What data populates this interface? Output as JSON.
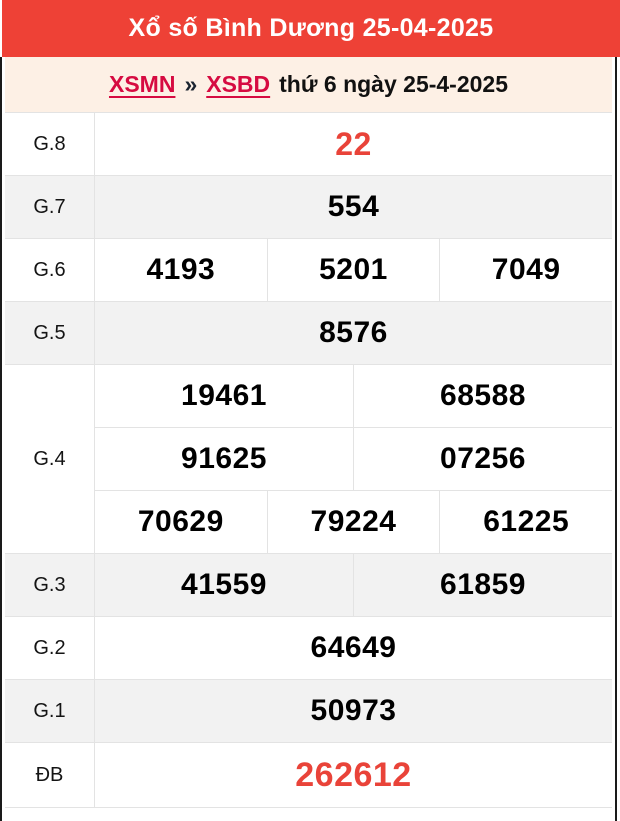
{
  "header": {
    "title": "Xổ số Bình Dương 25-04-2025",
    "bg_color": "#ee4136",
    "text_color": "#ffffff"
  },
  "breadcrumb": {
    "region_link": "XSMN",
    "separator": "»",
    "province_link": "XSBD",
    "date_text": "thứ 6 ngày 25-4-2025",
    "bg_color": "#fdf0e5",
    "link_color": "#d60b41"
  },
  "table": {
    "rows": [
      {
        "label": "G.8",
        "cells": [
          "22"
        ]
      },
      {
        "label": "G.7",
        "cells": [
          "554"
        ]
      },
      {
        "label": "G.6",
        "cells": [
          "4193",
          "5201",
          "7049"
        ]
      },
      {
        "label": "G.5",
        "cells": [
          "8576"
        ]
      },
      {
        "label": "G.4",
        "lines": [
          [
            "19461",
            "68588"
          ],
          [
            "91625",
            "07256"
          ],
          [
            "70629",
            "79224",
            "61225"
          ]
        ]
      },
      {
        "label": "G.3",
        "cells": [
          "41559",
          "61859"
        ]
      },
      {
        "label": "G.2",
        "cells": [
          "64649"
        ]
      },
      {
        "label": "G.1",
        "cells": [
          "50973"
        ]
      },
      {
        "label": "ĐB",
        "cells": [
          "262612"
        ]
      }
    ],
    "colors": {
      "highlight_number": "#e94339",
      "alt_row_bg": "#f2f2f2",
      "cell_border": "#e3e3e3",
      "frame_border": "#1a1a1a"
    }
  }
}
